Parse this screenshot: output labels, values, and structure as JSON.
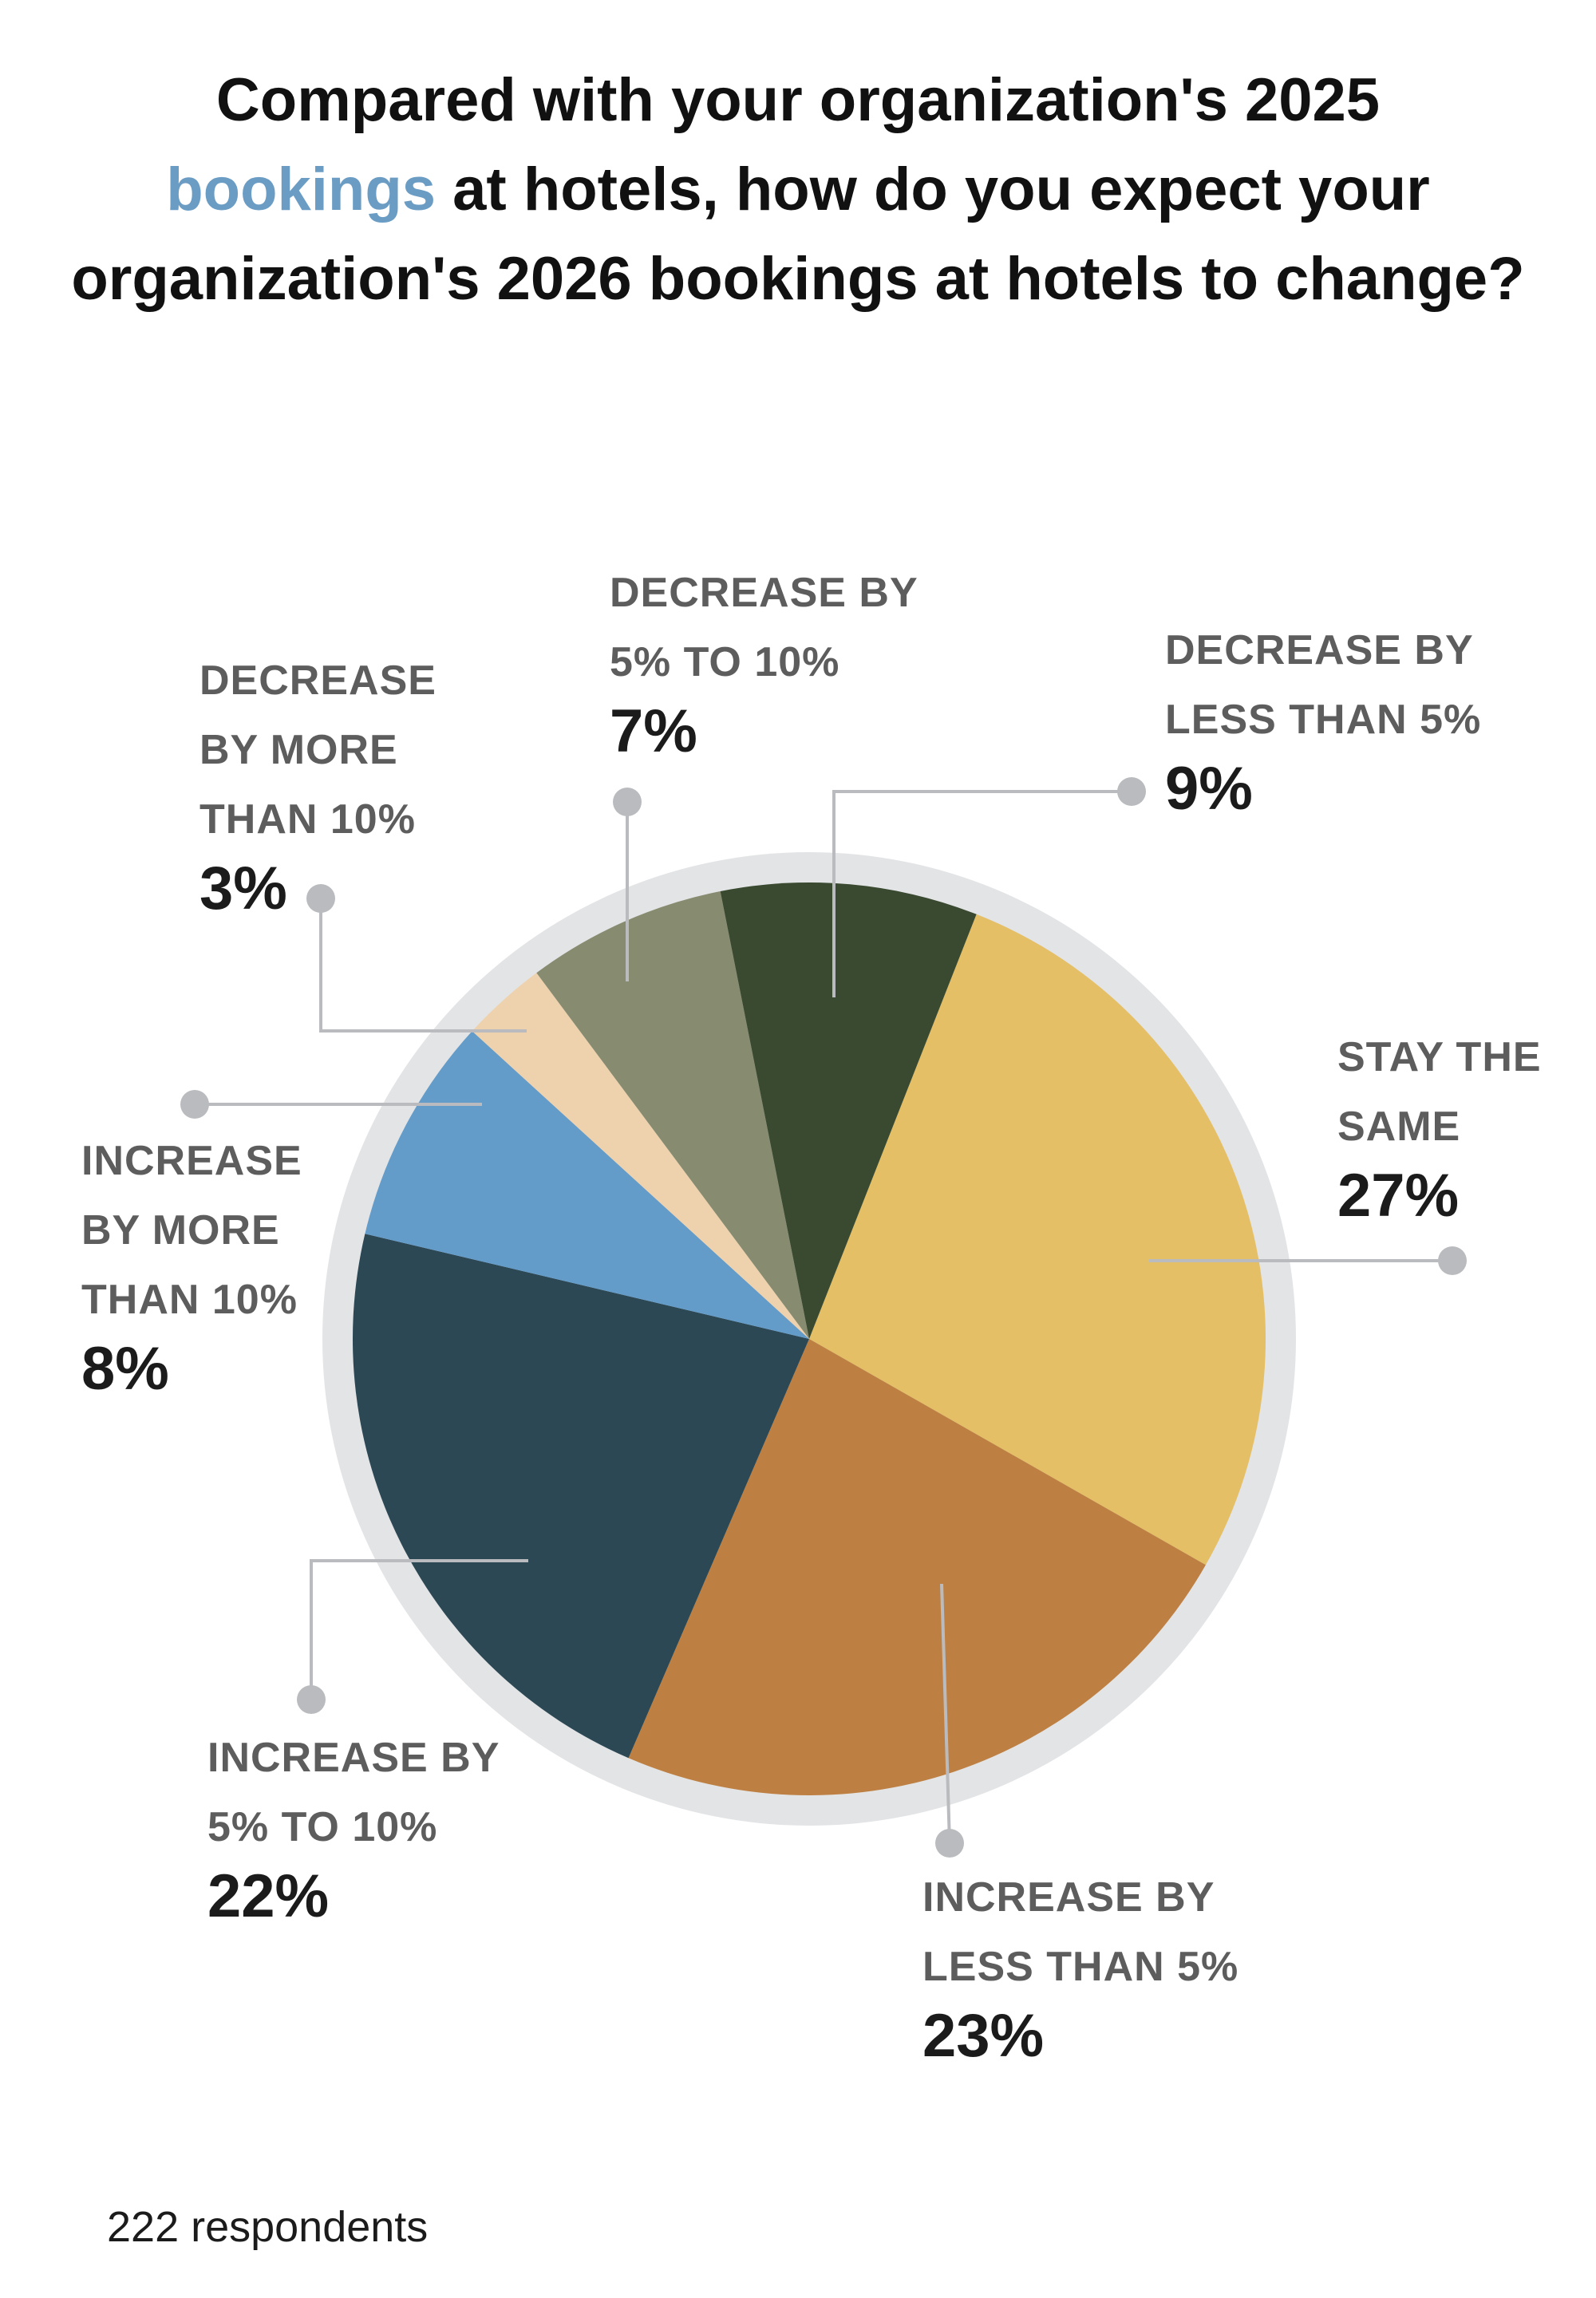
{
  "title": {
    "before": "Compared with your organization's 2025",
    "highlight": "bookings",
    "after_line2": " at hotels, how do you expect your",
    "line3": "organization's 2026 bookings at hotels to change?"
  },
  "footnote": "222 respondents",
  "colors": {
    "title_highlight": "#6a9cc4",
    "ring": "#e3e4e6",
    "leader": "#b9bbbe"
  },
  "chart_data": {
    "type": "pie",
    "title": "Compared with your organization's 2025 bookings at hotels, how do you expect your organization's 2026 bookings at hotels to change?",
    "slices": [
      {
        "id": "stay",
        "label_lines": [
          "STAY THE",
          "SAME"
        ],
        "value": 27,
        "display": "27%",
        "color": "#e4bf66"
      },
      {
        "id": "inc-lt5",
        "label_lines": [
          "INCREASE BY",
          "LESS THAN 5%"
        ],
        "value": 23,
        "display": "23%",
        "color": "#be8042"
      },
      {
        "id": "inc-5to10",
        "label_lines": [
          "INCREASE BY",
          "5% TO 10%"
        ],
        "value": 22,
        "display": "22%",
        "color": "#2c4855"
      },
      {
        "id": "inc-gt10",
        "label_lines": [
          "INCREASE",
          "BY MORE",
          "THAN 10%"
        ],
        "value": 8,
        "display": "8%",
        "color": "#639bc9"
      },
      {
        "id": "dec-gt10",
        "label_lines": [
          "DECREASE",
          "BY MORE",
          "THAN 10%"
        ],
        "value": 3,
        "display": "3%",
        "color": "#eed2ad"
      },
      {
        "id": "dec-5to10",
        "label_lines": [
          "DECREASE BY",
          "5% TO 10%"
        ],
        "value": 7,
        "display": "7%",
        "color": "#878b70"
      },
      {
        "id": "dec-lt5",
        "label_lines": [
          "DECREASE BY",
          "LESS THAN 5%"
        ],
        "value": 9,
        "display": "9%",
        "color": "#3a4a30"
      }
    ]
  }
}
